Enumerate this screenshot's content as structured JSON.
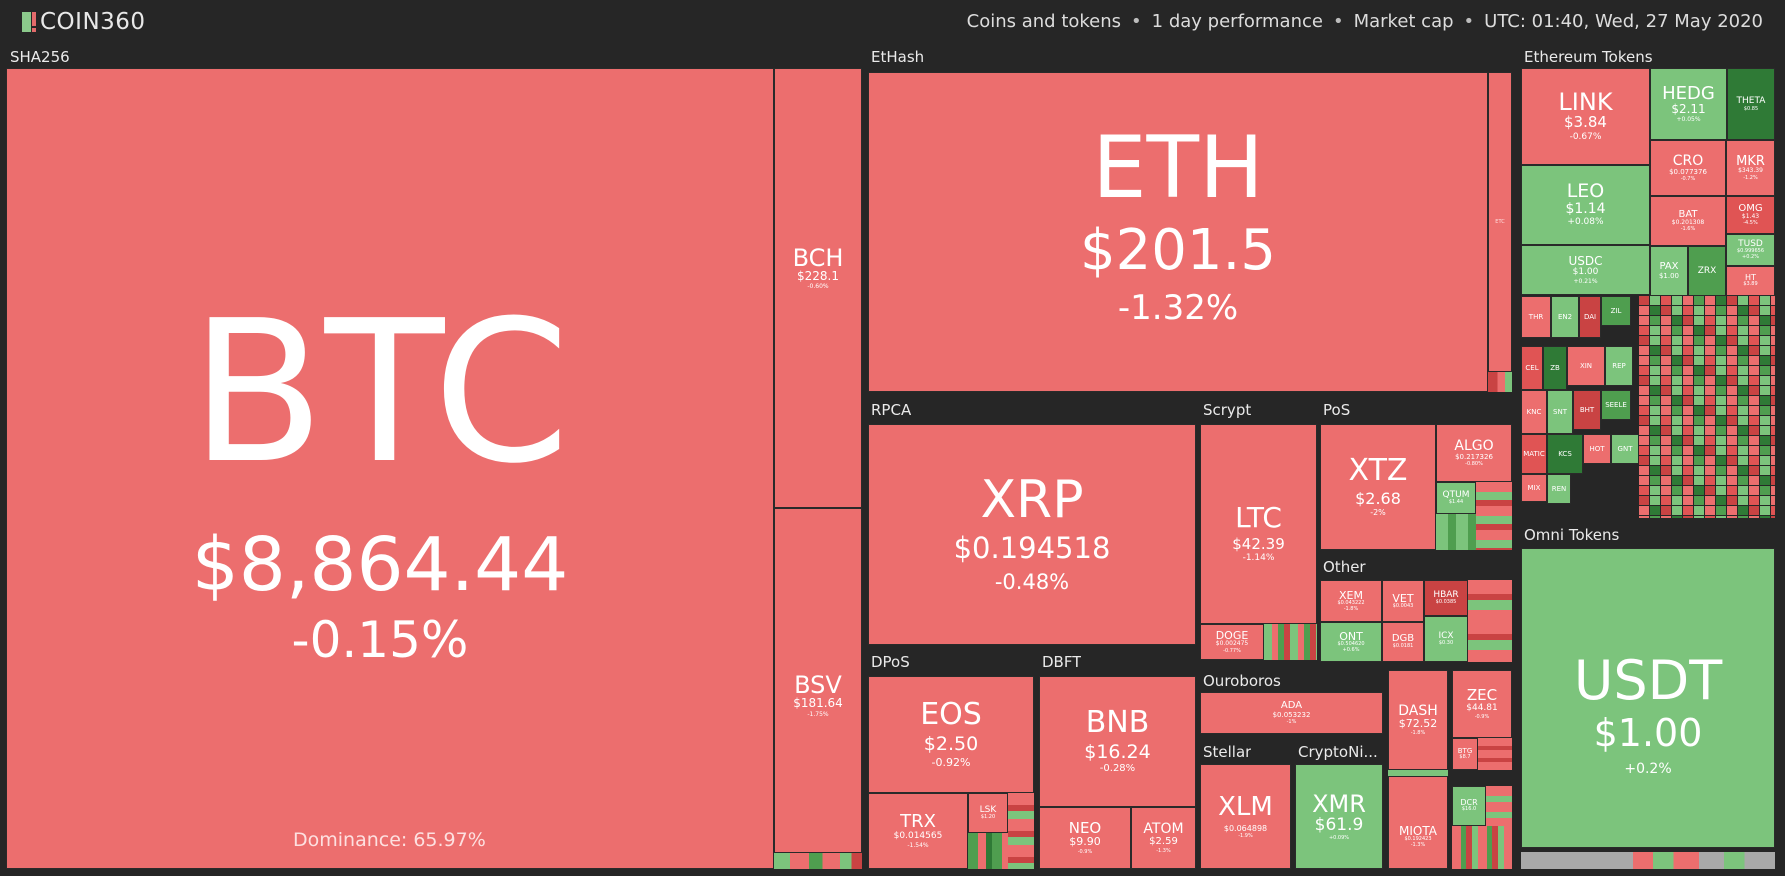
{
  "app": {
    "logo_text": "COIN360"
  },
  "filters": {
    "scope": "Coins and tokens",
    "period": "1 day performance",
    "metric": "Market cap",
    "time": "UTC: 01:40, Wed, 27 May 2020"
  },
  "colors": {
    "background": "#262626",
    "loss": "#ec6e6e",
    "gain": "#7cc47c"
  },
  "groups": {
    "sha256": "SHA256",
    "ethash": "EtHash",
    "ethereum_tokens": "Ethereum Tokens",
    "rpca": "RPCA",
    "scrypt": "Scrypt",
    "pos": "PoS",
    "other": "Other",
    "dpos": "DPoS",
    "dbft": "DBFT",
    "ouroboros": "Ouroboros",
    "stellar": "Stellar",
    "cryptonight": "CryptoNi...",
    "omni_tokens": "Omni Tokens"
  },
  "coins": {
    "btc": {
      "symbol": "BTC",
      "price": "$8,864.44",
      "change": "-0.15%",
      "dominance": "Dominance: 65.97%"
    },
    "bch": {
      "symbol": "BCH",
      "price": "$228.1",
      "change": "-0.60%"
    },
    "bsv": {
      "symbol": "BSV",
      "price": "$181.64",
      "change": "-1.75%"
    },
    "eth": {
      "symbol": "ETH",
      "price": "$201.5",
      "change": "-1.32%"
    },
    "etc": {
      "symbol": "ETC"
    },
    "xrp": {
      "symbol": "XRP",
      "price": "$0.194518",
      "change": "-0.48%"
    },
    "ltc": {
      "symbol": "LTC",
      "price": "$42.39",
      "change": "-1.14%"
    },
    "doge": {
      "symbol": "DOGE",
      "price": "$0.002475",
      "change": "-0.77%"
    },
    "xtz": {
      "symbol": "XTZ",
      "price": "$2.68",
      "change": "-2%"
    },
    "algo": {
      "symbol": "ALGO",
      "price": "$0.217326",
      "change": "-0.80%"
    },
    "qtum": {
      "symbol": "QTUM",
      "price": "$1.44"
    },
    "xem": {
      "symbol": "XEM",
      "price": "$0.043222",
      "change": "-1.8%"
    },
    "vet": {
      "symbol": "VET",
      "price": "$0.0043"
    },
    "hbar": {
      "symbol": "HBAR",
      "price": "$0.0385"
    },
    "ont": {
      "symbol": "ONT",
      "price": "$0.504620",
      "change": "+0.6%"
    },
    "dgb": {
      "symbol": "DGB",
      "price": "$0.0181"
    },
    "ick": {
      "symbol": "ICX",
      "price": "$0.30"
    },
    "eos": {
      "symbol": "EOS",
      "price": "$2.50",
      "change": "-0.92%"
    },
    "trx": {
      "symbol": "TRX",
      "price": "$0.014565",
      "change": "-1.54%"
    },
    "lsk": {
      "symbol": "LSK",
      "price": "$1.20"
    },
    "bnb": {
      "symbol": "BNB",
      "price": "$16.24",
      "change": "-0.28%"
    },
    "neo": {
      "symbol": "NEO",
      "price": "$9.90",
      "change": "-0.9%"
    },
    "atom": {
      "symbol": "ATOM",
      "price": "$2.59",
      "change": "-1.3%"
    },
    "ada": {
      "symbol": "ADA",
      "price": "$0.053232",
      "change": "-1%"
    },
    "dash": {
      "symbol": "DASH",
      "price": "$72.52",
      "change": "-1.8%"
    },
    "zec": {
      "symbol": "ZEC",
      "price": "$44.81",
      "change": "-0.9%"
    },
    "btg": {
      "symbol": "BTG",
      "price": "$8.7"
    },
    "xlm": {
      "symbol": "XLM",
      "price": "$0.064898",
      "change": "-1.9%"
    },
    "xmr": {
      "symbol": "XMR",
      "price": "$61.9",
      "change": "+0.09%"
    },
    "miota": {
      "symbol": "MIOTA",
      "price": "$0.192423",
      "change": "-1.3%"
    },
    "dcr": {
      "symbol": "DCR",
      "price": "$16.0"
    },
    "link": {
      "symbol": "LINK",
      "price": "$3.84",
      "change": "-0.67%"
    },
    "hedg": {
      "symbol": "HEDG",
      "price": "$2.11",
      "change": "+0.05%"
    },
    "theta": {
      "symbol": "THETA",
      "price": "$0.85"
    },
    "leo": {
      "symbol": "LEO",
      "price": "$1.14",
      "change": "+0.08%"
    },
    "cro": {
      "symbol": "CRO",
      "price": "$0.077376",
      "change": "-0.7%"
    },
    "mkr": {
      "symbol": "MKR",
      "price": "$343.39",
      "change": "-1.2%"
    },
    "bat": {
      "symbol": "BAT",
      "price": "$0.201308",
      "change": "-1.6%"
    },
    "omg": {
      "symbol": "OMG",
      "price": "$1.43",
      "change": "-4.5%"
    },
    "usdc": {
      "symbol": "USDC",
      "price": "$1.00",
      "change": "+0.21%"
    },
    "pax": {
      "symbol": "PAX",
      "price": "$1.00"
    },
    "zrx": {
      "symbol": "ZRX"
    },
    "tusd": {
      "symbol": "TUSD",
      "price": "$0.999656",
      "change": "+0.2%"
    },
    "ht": {
      "symbol": "HT",
      "price": "$3.89"
    },
    "usdt": {
      "symbol": "USDT",
      "price": "$1.00",
      "change": "+0.2%"
    }
  },
  "small_tokens": [
    "THR",
    "EN2",
    "DAI",
    "ZIL",
    "CEL",
    "ZB",
    "XIN",
    "REP",
    "KNC",
    "SNT",
    "BHT",
    "SEELE",
    "MATIC",
    "KCS",
    "HOT",
    "GNT",
    "MIX",
    "REN"
  ]
}
